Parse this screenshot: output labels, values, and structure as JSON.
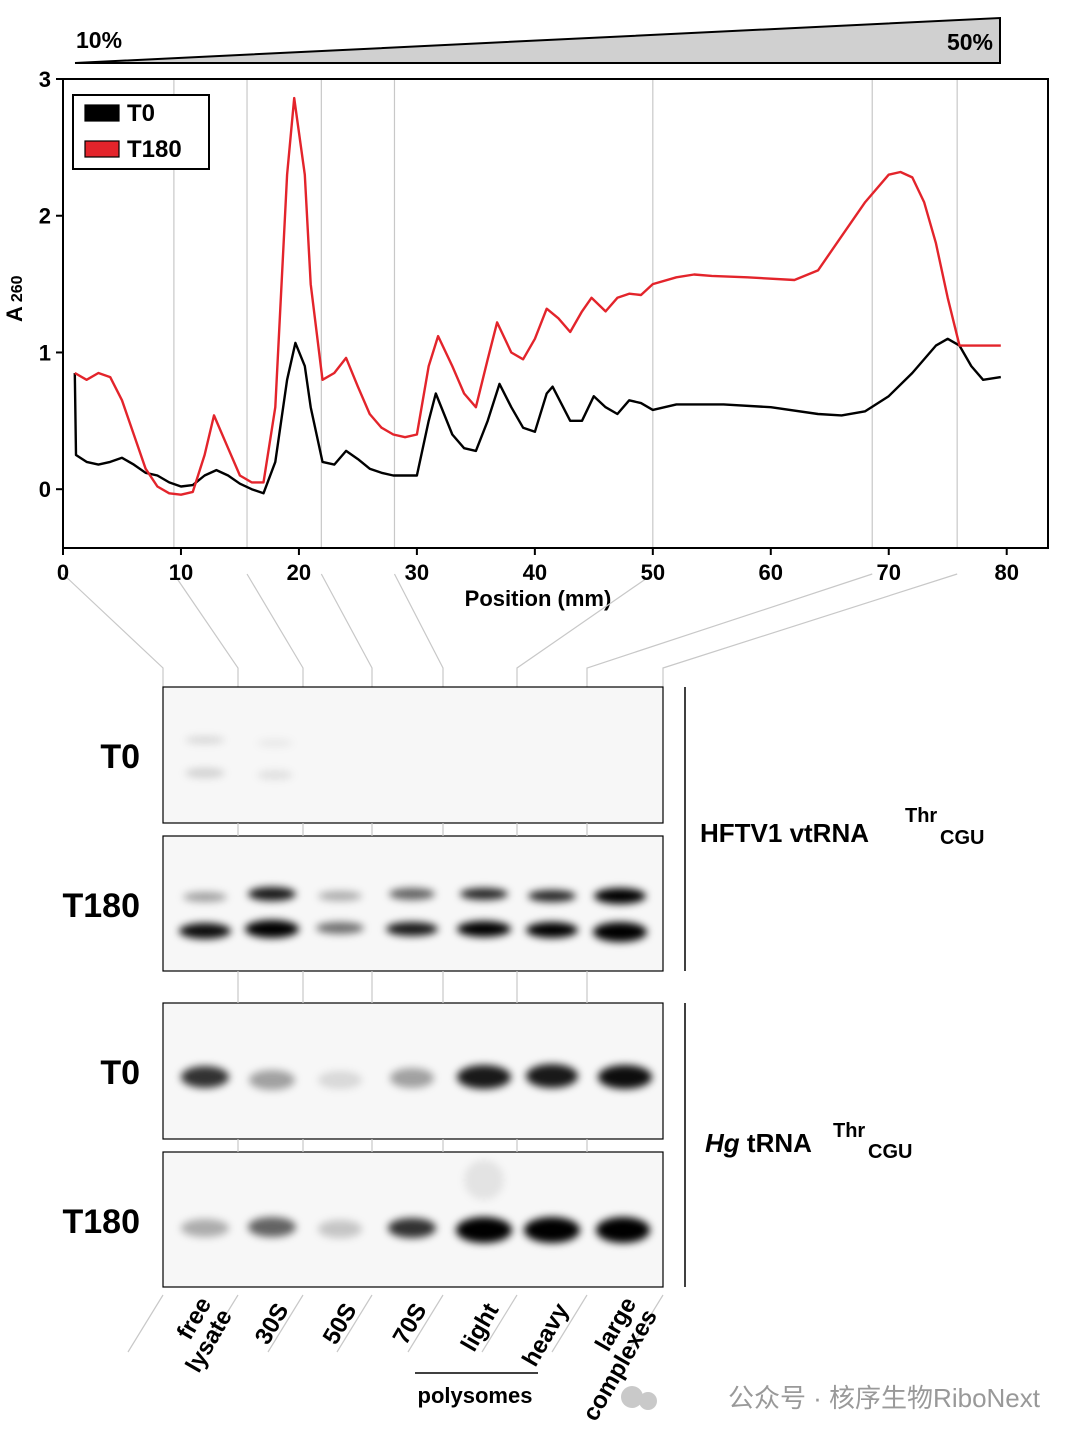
{
  "chart_data": {
    "type": "line",
    "gradient_start": "10%",
    "gradient_end": "50%",
    "ylabel": "A",
    "ylabel_sub": "260",
    "xlabel": "Position (mm)",
    "xlim": [
      0,
      83.5
    ],
    "ylim": [
      -0.43,
      3
    ],
    "xticks": [
      0,
      10,
      20,
      30,
      40,
      50,
      60,
      70,
      80
    ],
    "yticks": [
      0,
      1,
      2,
      3
    ],
    "legend": "top-left",
    "fraction_boundaries": [
      0,
      9.4,
      15.6,
      21.9,
      28.1,
      50,
      68.6,
      75.8
    ],
    "series": [
      {
        "name": "T0",
        "color": "#000000",
        "x": [
          1,
          1.1,
          2,
          3,
          4,
          5,
          6,
          7,
          8,
          9,
          10,
          11,
          12,
          13,
          14,
          15,
          16,
          17,
          18,
          19,
          19.7,
          20.5,
          21,
          22,
          23,
          24,
          25,
          26,
          27,
          28,
          30,
          31,
          31.6,
          33,
          34,
          35,
          36,
          37,
          38,
          39,
          40,
          41,
          41.5,
          43,
          44,
          45,
          46,
          47,
          48,
          49,
          50,
          52,
          56,
          60,
          64,
          66,
          68,
          70,
          72,
          74,
          75,
          76,
          77,
          78,
          79.5
        ],
        "values": [
          0.85,
          0.25,
          0.2,
          0.18,
          0.2,
          0.23,
          0.18,
          0.12,
          0.1,
          0.05,
          0.02,
          0.03,
          0.1,
          0.14,
          0.1,
          0.04,
          0,
          -0.03,
          0.2,
          0.8,
          1.07,
          0.9,
          0.6,
          0.2,
          0.18,
          0.28,
          0.22,
          0.15,
          0.12,
          0.1,
          0.1,
          0.5,
          0.7,
          0.4,
          0.3,
          0.28,
          0.5,
          0.77,
          0.6,
          0.45,
          0.42,
          0.7,
          0.75,
          0.5,
          0.5,
          0.68,
          0.6,
          0.55,
          0.65,
          0.63,
          0.58,
          0.62,
          0.62,
          0.6,
          0.55,
          0.54,
          0.57,
          0.68,
          0.85,
          1.05,
          1.1,
          1.05,
          0.9,
          0.8,
          0.82
        ]
      },
      {
        "name": "T180",
        "color": "#e3242b",
        "x": [
          1,
          2,
          3,
          4,
          5,
          6,
          7,
          8,
          9,
          10,
          11,
          12,
          12.8,
          14,
          15,
          16,
          17,
          18,
          19,
          19.6,
          20.5,
          21,
          22,
          23,
          24,
          25,
          26,
          27,
          28,
          29,
          30,
          31,
          31.8,
          33,
          34,
          35,
          36,
          36.8,
          38,
          39,
          40,
          41,
          42,
          43,
          44,
          44.8,
          46,
          47,
          48,
          49,
          50,
          52,
          53.5,
          55,
          58,
          62,
          64,
          66,
          68,
          70,
          71,
          72,
          73,
          74,
          75,
          76,
          77,
          79.5
        ],
        "values": [
          0.85,
          0.8,
          0.85,
          0.82,
          0.65,
          0.4,
          0.15,
          0.02,
          -0.03,
          -0.04,
          -0.02,
          0.25,
          0.54,
          0.3,
          0.1,
          0.05,
          0.05,
          0.6,
          2.3,
          2.86,
          2.3,
          1.5,
          0.8,
          0.85,
          0.96,
          0.75,
          0.55,
          0.45,
          0.4,
          0.38,
          0.4,
          0.9,
          1.12,
          0.9,
          0.7,
          0.6,
          0.95,
          1.22,
          1.0,
          0.95,
          1.1,
          1.32,
          1.25,
          1.15,
          1.3,
          1.4,
          1.3,
          1.4,
          1.43,
          1.42,
          1.5,
          1.55,
          1.57,
          1.56,
          1.55,
          1.53,
          1.6,
          1.85,
          2.1,
          2.3,
          2.32,
          2.28,
          2.1,
          1.8,
          1.4,
          1.05,
          1.05,
          1.05
        ]
      }
    ]
  },
  "blots": {
    "rows": [
      "T0",
      "T180",
      "T0",
      "T180"
    ],
    "group1": {
      "name": "HFTV1 vtRNA",
      "sup": "Thr",
      "sub": "CGU"
    },
    "group2": {
      "italic": "Hg",
      "name": "tRNA",
      "sup": "Thr",
      "sub": "CGU"
    },
    "lanes": [
      [
        "free",
        "lysate"
      ],
      [
        "30S"
      ],
      [
        "50S"
      ],
      [
        "70S"
      ],
      [
        "light"
      ],
      [
        "heavy"
      ],
      [
        "large",
        "complexes"
      ]
    ],
    "polysomes": "polysomes"
  },
  "watermark": "公众号 · 核序生物RiboNext"
}
